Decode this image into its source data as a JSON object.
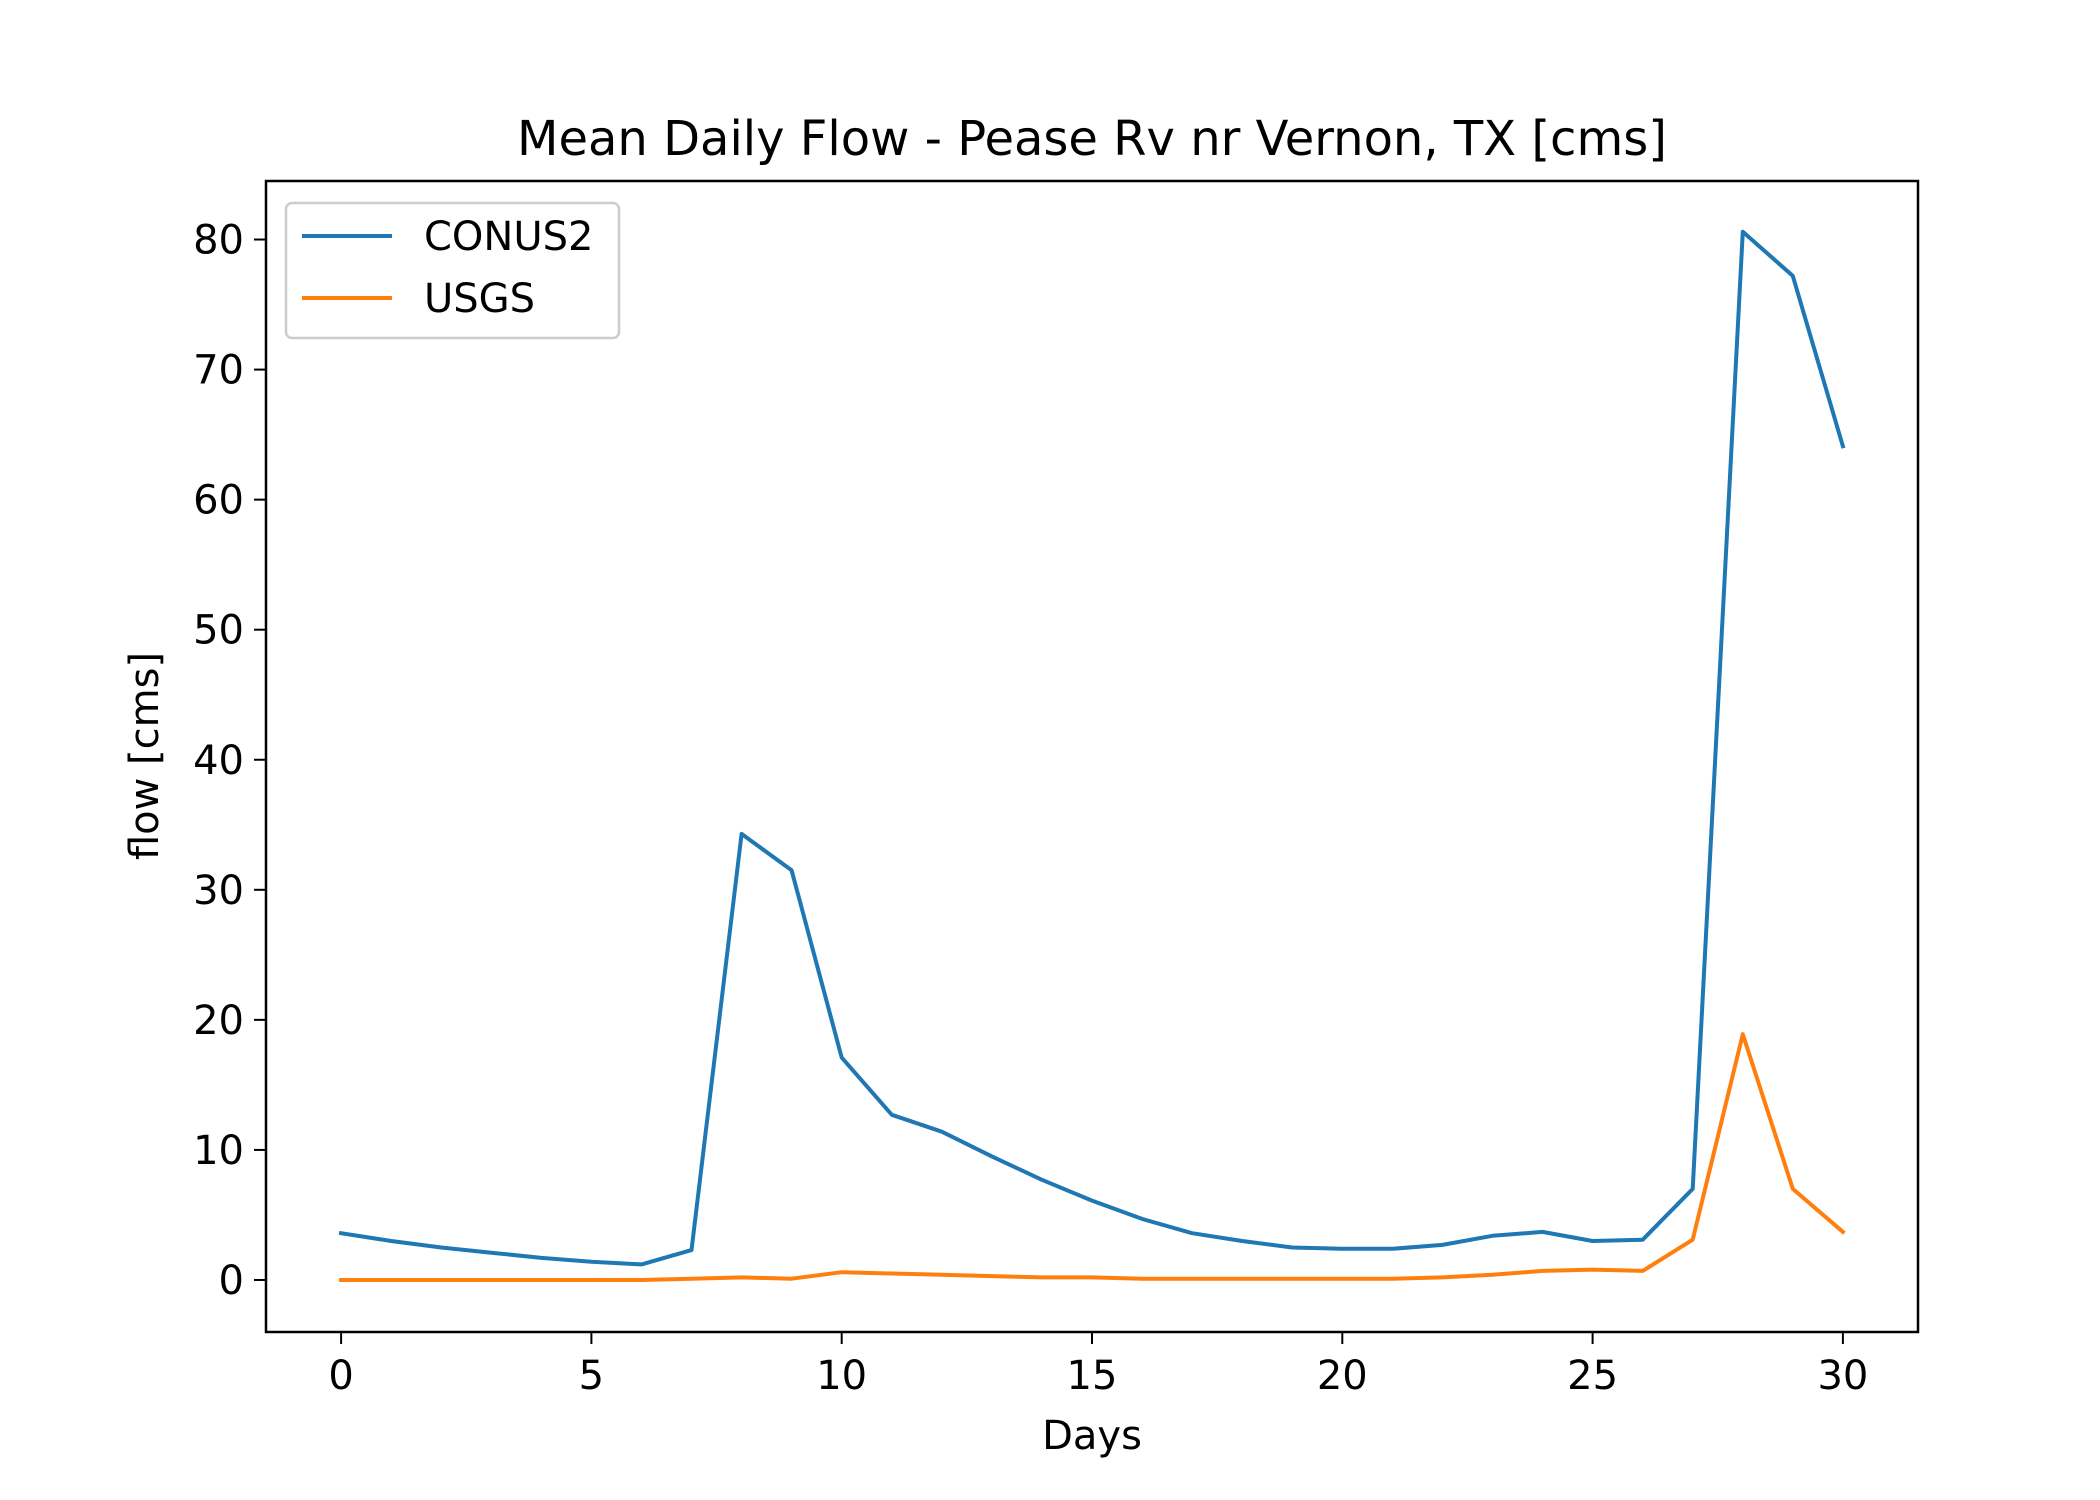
{
  "chart_data": {
    "type": "line",
    "title": "Mean Daily Flow - Pease Rv nr Vernon, TX [cms]",
    "xlabel": "Days",
    "ylabel": "flow [cms]",
    "xlim": [
      -1.5,
      31.5
    ],
    "ylim": [
      -4,
      84.5
    ],
    "xticks": [
      0,
      5,
      10,
      15,
      20,
      25,
      30
    ],
    "yticks": [
      0,
      10,
      20,
      30,
      40,
      50,
      60,
      70,
      80
    ],
    "grid": false,
    "legend": "top-left",
    "x": [
      0,
      1,
      2,
      3,
      4,
      5,
      6,
      7,
      8,
      9,
      10,
      11,
      12,
      13,
      14,
      15,
      16,
      17,
      18,
      19,
      20,
      21,
      22,
      23,
      24,
      25,
      26,
      27,
      28,
      29,
      30
    ],
    "series": [
      {
        "name": "CONUS2",
        "color": "#1f77b4",
        "values": [
          3.6,
          3.0,
          2.5,
          2.1,
          1.7,
          1.4,
          1.2,
          2.3,
          34.3,
          31.5,
          17.1,
          12.7,
          11.4,
          9.5,
          7.7,
          6.1,
          4.7,
          3.6,
          3.0,
          2.5,
          2.4,
          2.4,
          2.7,
          3.4,
          3.7,
          3.0,
          3.1,
          7.0,
          80.6,
          77.2,
          64.1
        ]
      },
      {
        "name": "USGS",
        "color": "#ff7f0e",
        "values": [
          0.0,
          0.0,
          0.0,
          0.0,
          0.0,
          0.0,
          0.0,
          0.1,
          0.2,
          0.1,
          0.6,
          0.5,
          0.4,
          0.3,
          0.2,
          0.2,
          0.1,
          0.1,
          0.1,
          0.1,
          0.1,
          0.1,
          0.2,
          0.4,
          0.7,
          0.8,
          0.7,
          3.1,
          18.9,
          7.0,
          3.7
        ]
      }
    ]
  }
}
